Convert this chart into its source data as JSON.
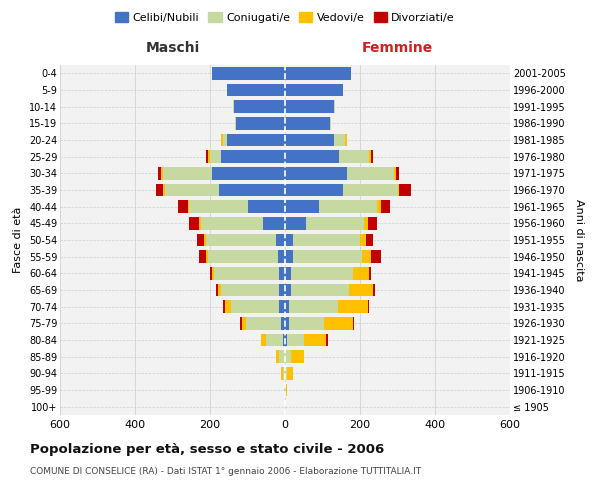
{
  "age_groups": [
    "100+",
    "95-99",
    "90-94",
    "85-89",
    "80-84",
    "75-79",
    "70-74",
    "65-69",
    "60-64",
    "55-59",
    "50-54",
    "45-49",
    "40-44",
    "35-39",
    "30-34",
    "25-29",
    "20-24",
    "15-19",
    "10-14",
    "5-9",
    "0-4"
  ],
  "birth_years": [
    "≤ 1905",
    "1906-1910",
    "1911-1915",
    "1916-1920",
    "1921-1925",
    "1926-1930",
    "1931-1935",
    "1936-1940",
    "1941-1945",
    "1946-1950",
    "1951-1955",
    "1956-1960",
    "1961-1965",
    "1966-1970",
    "1971-1975",
    "1976-1980",
    "1981-1985",
    "1986-1990",
    "1991-1995",
    "1996-2000",
    "2001-2005"
  ],
  "males": {
    "celibi": [
      0,
      0,
      0,
      0,
      5,
      10,
      15,
      15,
      15,
      20,
      25,
      60,
      100,
      175,
      195,
      170,
      155,
      130,
      135,
      155,
      195
    ],
    "coniugati": [
      0,
      2,
      5,
      15,
      45,
      95,
      130,
      155,
      175,
      185,
      185,
      165,
      155,
      145,
      130,
      30,
      10,
      3,
      3,
      0,
      0
    ],
    "vedovi": [
      0,
      0,
      5,
      10,
      15,
      10,
      15,
      10,
      5,
      5,
      5,
      5,
      5,
      5,
      5,
      5,
      5,
      0,
      0,
      0,
      0
    ],
    "divorziati": [
      0,
      0,
      0,
      0,
      0,
      5,
      5,
      5,
      5,
      20,
      20,
      25,
      25,
      20,
      10,
      5,
      0,
      0,
      0,
      0,
      0
    ]
  },
  "females": {
    "nubili": [
      0,
      0,
      0,
      0,
      5,
      10,
      10,
      15,
      15,
      20,
      20,
      55,
      90,
      155,
      165,
      145,
      130,
      120,
      130,
      155,
      175
    ],
    "coniugate": [
      0,
      2,
      5,
      15,
      45,
      95,
      130,
      155,
      165,
      185,
      180,
      155,
      155,
      145,
      125,
      80,
      30,
      3,
      3,
      0,
      0
    ],
    "vedove": [
      0,
      3,
      15,
      35,
      60,
      75,
      80,
      65,
      45,
      25,
      15,
      10,
      10,
      5,
      5,
      5,
      5,
      0,
      0,
      0,
      0
    ],
    "divorziate": [
      0,
      0,
      0,
      0,
      5,
      5,
      5,
      5,
      5,
      25,
      20,
      25,
      25,
      30,
      10,
      5,
      0,
      0,
      0,
      0,
      0
    ]
  },
  "colors": {
    "celibi": "#4472c4",
    "coniugati": "#c5d9a0",
    "vedovi": "#ffc000",
    "divorziati": "#c00000"
  },
  "title": "Popolazione per età, sesso e stato civile - 2006",
  "subtitle": "COMUNE DI CONSELICE (RA) - Dati ISTAT 1° gennaio 2006 - Elaborazione TUTTITALIA.IT",
  "xlabel_left": "Maschi",
  "xlabel_right": "Femmine",
  "ylabel_left": "Fasce di età",
  "ylabel_right": "Anni di nascita",
  "legend_labels": [
    "Celibi/Nubili",
    "Coniugati/e",
    "Vedovi/e",
    "Divorziati/e"
  ],
  "xlim": 600,
  "bg_color": "#ffffff",
  "plot_bg_color": "#f2f2f2",
  "grid_color": "#cccccc"
}
